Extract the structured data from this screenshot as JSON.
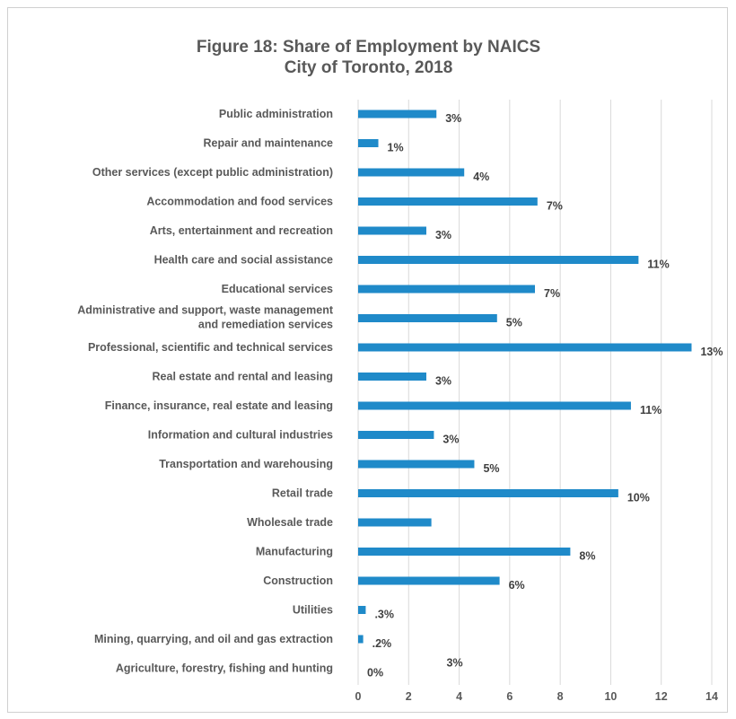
{
  "chart_data": {
    "type": "bar",
    "orientation": "horizontal",
    "title": "Figure 18: Share of Employment by NAICS",
    "subtitle": "City of Toronto, 2018",
    "xlabel": "",
    "ylabel": "",
    "xlim": [
      0,
      14
    ],
    "x_ticks": [
      0,
      2,
      4,
      6,
      8,
      10,
      12,
      14
    ],
    "grid": true,
    "legend": "none",
    "bar_color": "#1f8ac9",
    "categories": [
      "Public administration",
      "Repair and maintenance",
      "Other services (except public administration)",
      "Accommodation and food services",
      "Arts, entertainment and recreation",
      "Health care and social assistance",
      "Educational services",
      "Administrative and support, waste management|and remediation services",
      "Professional, scientific and technical services",
      "Real estate and rental and leasing",
      "Finance, insurance, real estate and leasing",
      "Information and cultural industries",
      "Transportation  and warehousing",
      "Retail trade",
      "Wholesale trade",
      "Manufacturing",
      "Construction",
      "Utilities",
      "Mining, quarrying, and oil and gas extraction",
      "Agriculture, forestry, fishing and hunting"
    ],
    "values": [
      3.1,
      0.8,
      4.2,
      7.1,
      2.7,
      11.1,
      7.0,
      5.5,
      13.2,
      2.7,
      10.8,
      3.0,
      4.6,
      10.3,
      2.9,
      8.4,
      5.6,
      0.3,
      0.2,
      0.0
    ],
    "data_labels": [
      "3%",
      "1%",
      "4%",
      "7%",
      "3%",
      "11%",
      "7%",
      "5%",
      "13%",
      "3%",
      "11%",
      "3%",
      "5%",
      "10%",
      "",
      "8%",
      "6%",
      ".3%",
      ".2%",
      "0%"
    ],
    "annotations": [
      {
        "text": "3%",
        "x": 3.5,
        "category_index": 19
      }
    ]
  }
}
